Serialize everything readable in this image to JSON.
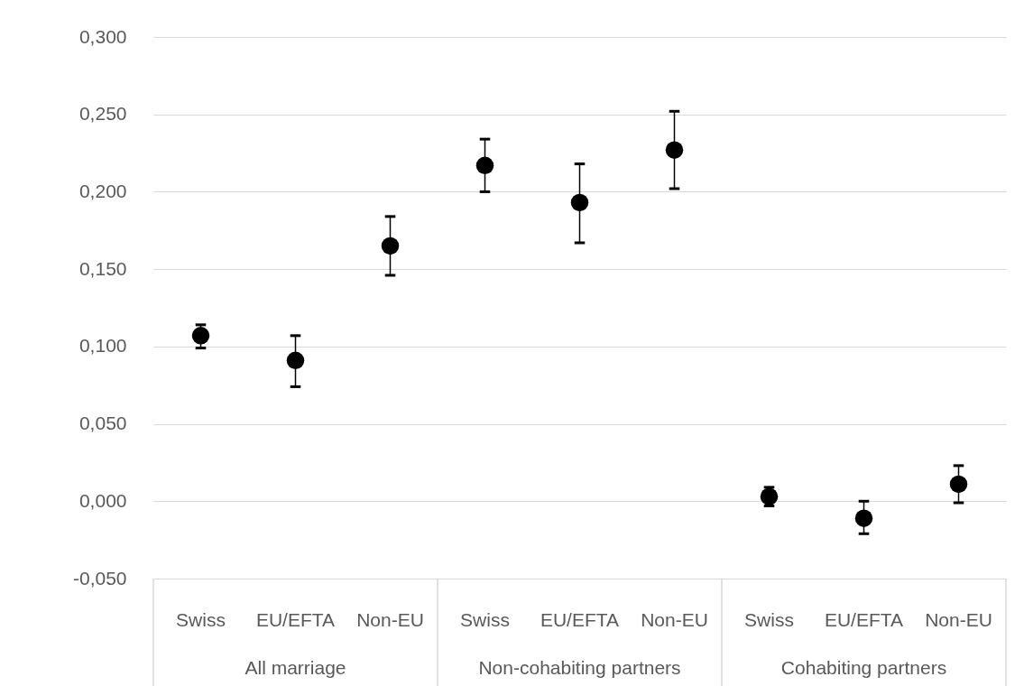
{
  "chart_data": {
    "type": "scatter",
    "categories": [
      "Swiss",
      "EU/EFTA",
      "Non-EU",
      "Swiss",
      "EU/EFTA",
      "Non-EU",
      "Swiss",
      "EU/EFTA",
      "Non-EU"
    ],
    "color": "#000000",
    "values": [
      0.107,
      0.091,
      0.165,
      0.217,
      0.193,
      0.227,
      0.003,
      -0.011,
      0.011
    ],
    "errors": [
      [
        0.099,
        0.114
      ],
      [
        0.074,
        0.107
      ],
      [
        0.146,
        0.184
      ],
      [
        0.2,
        0.234
      ],
      [
        0.167,
        0.218
      ],
      [
        0.202,
        0.252
      ],
      [
        -0.003,
        0.009
      ],
      [
        -0.021,
        0.0
      ],
      [
        -0.001,
        0.023
      ]
    ],
    "annotations": [
      "All marriage",
      "Non-cohabiting partners",
      "Cohabiting partners"
    ],
    "ylim": [
      -0.05,
      0.3
    ],
    "yticks": [
      {
        "value": -0.05,
        "label": "-0,050"
      },
      {
        "value": 0,
        "label": "0,000"
      },
      {
        "value": 0.05,
        "label": "0,050"
      },
      {
        "value": 0.1,
        "label": "0,100"
      },
      {
        "value": 0.15,
        "label": "0,150"
      },
      {
        "value": 0.2,
        "label": "0,200"
      },
      {
        "value": 0.25,
        "label": "0,250"
      },
      {
        "value": 0.3,
        "label": "0,300"
      }
    ],
    "grid": "y",
    "marker": "circle"
  }
}
